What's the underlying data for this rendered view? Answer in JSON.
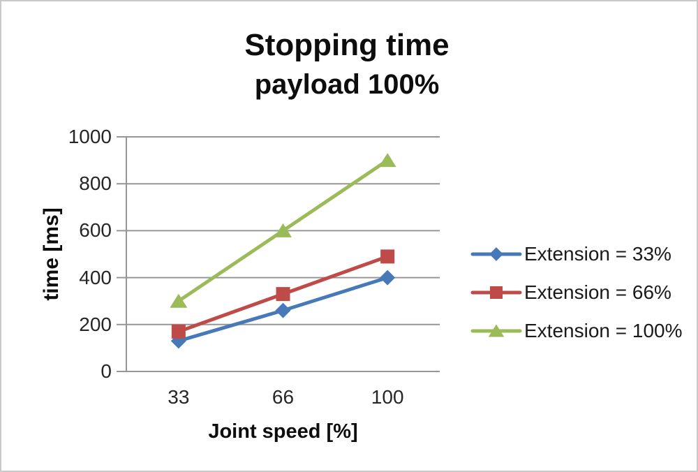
{
  "window": {
    "background_color": "#ffffff",
    "border_color": "#c9c9c9"
  },
  "chart_data": {
    "type": "line",
    "title": "Stopping time",
    "subtitle": "payload 100%",
    "xlabel": "Joint speed [%]",
    "ylabel": "time [ms]",
    "categories": [
      "33",
      "66",
      "100"
    ],
    "ylim": [
      0,
      1000
    ],
    "yticks": [
      0,
      200,
      400,
      600,
      800,
      1000
    ],
    "grid": true,
    "legend_position": "right",
    "gridline_color": "#969696",
    "text_color": "#262626",
    "series": [
      {
        "name": "Extension = 33%",
        "marker": "diamond",
        "color": "#4779b8",
        "values": [
          130,
          260,
          400
        ]
      },
      {
        "name": "Extension = 66%",
        "marker": "square",
        "color": "#be4b48",
        "values": [
          170,
          330,
          490
        ]
      },
      {
        "name": "Extension = 100%",
        "marker": "triangle",
        "color": "#9bbb59",
        "values": [
          300,
          600,
          900
        ]
      }
    ]
  }
}
